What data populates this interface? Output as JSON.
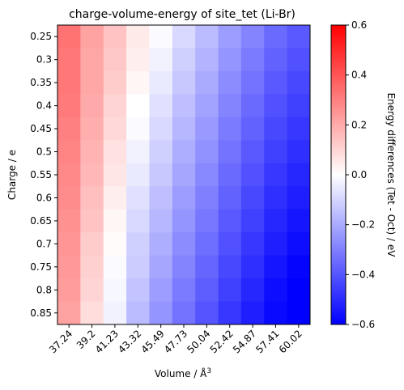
{
  "chart_data": {
    "type": "heatmap",
    "title": "charge-volume-energy of site_tet (Li-Br)",
    "xlabel": "Volume / Å",
    "xlabel_sup": "3",
    "ylabel": "Charge / e",
    "colorbar_label": "Energy differences (Tet - Oct) / eV",
    "colormap": "bwr",
    "vmin": -0.6,
    "vmax": 0.6,
    "colorbar_ticks": [
      "0.6",
      "0.4",
      "0.2",
      "0.0",
      "−0.2",
      "−0.4",
      "−0.6"
    ],
    "colorbar_tick_values": [
      0.6,
      0.4,
      0.2,
      0.0,
      -0.2,
      -0.4,
      -0.6
    ],
    "x": [
      "37.24",
      "39.2",
      "41.23",
      "43.32",
      "45.49",
      "47.73",
      "50.04",
      "52.42",
      "54.87",
      "57.41",
      "60.02"
    ],
    "y": [
      "0.25",
      "0.3",
      "0.35",
      "0.4",
      "0.45",
      "0.5",
      "0.55",
      "0.6",
      "0.65",
      "0.7",
      "0.75",
      "0.8",
      "0.85"
    ],
    "z": [
      [
        0.33,
        0.22,
        0.14,
        0.05,
        -0.01,
        -0.09,
        -0.16,
        -0.23,
        -0.29,
        -0.35,
        -0.39
      ],
      [
        0.32,
        0.21,
        0.13,
        0.04,
        -0.03,
        -0.11,
        -0.18,
        -0.25,
        -0.31,
        -0.37,
        -0.41
      ],
      [
        0.32,
        0.21,
        0.12,
        0.02,
        -0.05,
        -0.13,
        -0.2,
        -0.27,
        -0.33,
        -0.39,
        -0.43
      ],
      [
        0.31,
        0.2,
        0.1,
        0.0,
        -0.07,
        -0.15,
        -0.22,
        -0.29,
        -0.35,
        -0.41,
        -0.45
      ],
      [
        0.3,
        0.19,
        0.09,
        -0.01,
        -0.09,
        -0.17,
        -0.24,
        -0.31,
        -0.37,
        -0.43,
        -0.47
      ],
      [
        0.29,
        0.18,
        0.07,
        -0.03,
        -0.11,
        -0.19,
        -0.26,
        -0.33,
        -0.39,
        -0.45,
        -0.49
      ],
      [
        0.28,
        0.17,
        0.06,
        -0.05,
        -0.13,
        -0.21,
        -0.28,
        -0.35,
        -0.41,
        -0.47,
        -0.51
      ],
      [
        0.27,
        0.15,
        0.04,
        -0.07,
        -0.15,
        -0.23,
        -0.3,
        -0.37,
        -0.43,
        -0.49,
        -0.53
      ],
      [
        0.26,
        0.14,
        0.02,
        -0.09,
        -0.17,
        -0.25,
        -0.32,
        -0.39,
        -0.45,
        -0.51,
        -0.55
      ],
      [
        0.25,
        0.12,
        0.01,
        -0.11,
        -0.19,
        -0.27,
        -0.34,
        -0.41,
        -0.47,
        -0.53,
        -0.57
      ],
      [
        0.24,
        0.11,
        -0.01,
        -0.12,
        -0.21,
        -0.29,
        -0.36,
        -0.43,
        -0.49,
        -0.55,
        -0.59
      ],
      [
        0.23,
        0.1,
        -0.02,
        -0.14,
        -0.23,
        -0.31,
        -0.38,
        -0.45,
        -0.51,
        -0.57,
        -0.6
      ],
      [
        0.22,
        0.08,
        -0.03,
        -0.16,
        -0.25,
        -0.33,
        -0.4,
        -0.47,
        -0.53,
        -0.58,
        -0.6
      ]
    ]
  }
}
